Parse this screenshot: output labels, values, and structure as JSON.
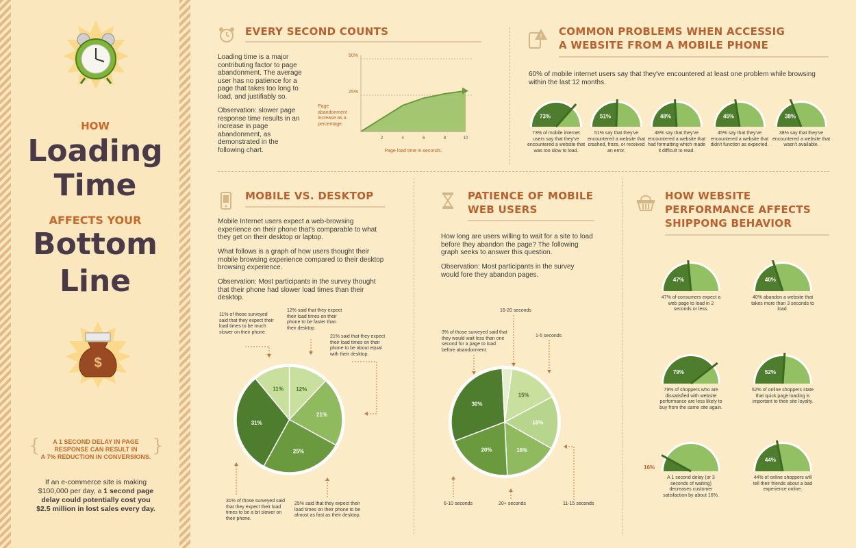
{
  "sidebar": {
    "how": "HOW",
    "loading": "Loading",
    "time": "Time",
    "affects": "AFFECTS YOUR",
    "bottom": "Bottom",
    "line": "Line",
    "delay_line1": "A 1 SECOND DELAY IN PAGE",
    "delay_line2": "RESPONSE CAN RESULT IN",
    "delay_line3": "A 7% REDUCTION IN CONVERSIONS.",
    "bottom_line1": "If an e-commerce site is making",
    "bottom_line2": "$100,000 per day, a",
    "bottom_bold2": "1 second page",
    "bottom_bold3": "delay could potentially cost you",
    "bottom_bold4": "$2.5 million in lost sales every day."
  },
  "every_second": {
    "title": "EVERY SECOND COUNTS",
    "para1": "Loading time is a major contributing factor to page abandonment. The average user has no patience for a page that takes too long to load, and justifiably so.",
    "para2": "Observation: slower page response time results in an increase in page abandonment, as demonstrated in the following chart.",
    "ylabel_a": "Page",
    "ylabel_b": "abandonment",
    "ylabel_c": "increase as a",
    "ylabel_d": "percentage.",
    "xlabel": "Page load time in seconds."
  },
  "common_problems": {
    "title_line1": "COMMON PROBLEMS WHEN ACCESSIG",
    "title_line2": "A WEBSITE FROM A MOBILE PHONE",
    "intro": "60% of mobile internet users say that they've encountered at least one problem while browsing within the last 12 months."
  },
  "mobile_desktop": {
    "title": "MOBILE VS. DESKTOP",
    "para1": "Mobile Internet users expect a web-browsing experience on their phone that's comparable to what they get on their desktop or laptop.",
    "para2": "What follows is a graph of how users thought their mobile browsing experience compared to their desktop browsing experience.",
    "para3": "Observation: Most participants in the survey thought that their phone had slower load times than their desktop.",
    "ann11": "11% of those surveyed said that they expect their load times to be much slower on their phone.",
    "ann12": "12% said that they expect their load times on their phone to be faster than their desktop.",
    "ann21": "21% said that they expect their load times on their phone to be about equal with their desktop.",
    "ann31": "31% of those surveyed said that they expect their load times to be a bit slower on their phone.",
    "ann25": "25% said that they expect their load times on their phone to be almost as fast as their desktop."
  },
  "patience": {
    "title_line1": "PATIENCE OF MOBILE",
    "title_line2": "WEB USERS",
    "para1": "How long are users willing to wait for a site to load before they abandon the page? The following graph seeks to answer this question.",
    "para2": "Observation: Most participants in the survey would fore they abandon pages.",
    "ann3": "3% of those surveyed said that they would wait less than one second for a page to load before abandonment.",
    "lbl_16_20": "16-20 seconds",
    "lbl_1_5": "1-5 seconds",
    "lbl_6_10": "6-10 seconds",
    "lbl_20": "20+ seconds",
    "lbl_11_15": "11-15 seconds"
  },
  "shopping": {
    "title_line1": "HOW WEBSITE",
    "title_line2": "PERFORMANCE AFFECTS",
    "title_line3": "SHIPPONG BEHAVIOR"
  },
  "chart_data": [
    {
      "type": "area",
      "x": [
        0,
        2,
        4,
        6,
        8,
        10
      ],
      "values": [
        0,
        9,
        18,
        23,
        26,
        28
      ],
      "xlabel": "Page load time in seconds.",
      "ylabel": "Page abandonment increase as a percentage.",
      "x_ticks": [
        "2",
        "4",
        "6",
        "8",
        "10"
      ],
      "y_ticks": [
        "25%",
        "50%"
      ],
      "ylim": [
        0,
        50
      ],
      "xlim": [
        0,
        10
      ]
    },
    {
      "type": "gauge",
      "title": "COMMON PROBLEMS WHEN ACCESSIG A WEBSITE FROM A MOBILE PHONE",
      "items": [
        {
          "value": 73,
          "label": "73%",
          "caption": "73% of mobile internet users say that they've encountered a website that was too slow to load."
        },
        {
          "value": 51,
          "label": "51%",
          "caption": "51% say that they've encountered a website that crashed, froze, or received an error."
        },
        {
          "value": 48,
          "label": "48%",
          "caption": "48% say that they've encountered a website that had formatting which made it difficult to read."
        },
        {
          "value": 45,
          "label": "45%",
          "caption": "45% say that they've encountered a website that didn't function as expected."
        },
        {
          "value": 38,
          "label": "38%",
          "caption": "38% say that they've encountered a website that wasn't available."
        }
      ]
    },
    {
      "type": "pie",
      "title": "MOBILE VS. DESKTOP",
      "slices": [
        {
          "label": "12%",
          "value": 12
        },
        {
          "label": "21%",
          "value": 21
        },
        {
          "label": "25%",
          "value": 25
        },
        {
          "label": "31%",
          "value": 31
        },
        {
          "label": "11%",
          "value": 11
        }
      ]
    },
    {
      "type": "pie",
      "title": "PATIENCE OF MOBILE WEB USERS",
      "slices": [
        {
          "label": "16%",
          "value": 16,
          "category": "1-5 seconds"
        },
        {
          "label": "16%",
          "value": 16,
          "category": "11-15 seconds"
        },
        {
          "label": "20%",
          "value": 20,
          "category": "20+ seconds"
        },
        {
          "label": "30%",
          "value": 30,
          "category": "6-10 seconds"
        },
        {
          "label": "",
          "value": 3,
          "category": "less than one second"
        },
        {
          "label": "15%",
          "value": 15,
          "category": "16-20 seconds"
        }
      ]
    },
    {
      "type": "gauge",
      "title": "HOW WEBSITE PERFORMANCE AFFECTS SHIPPONG BEHAVIOR",
      "items": [
        {
          "value": 47,
          "label": "47%",
          "caption": "47% of consumers expect a web page to load in 2 seconds or less."
        },
        {
          "value": 40,
          "label": "40%",
          "caption": "40% abandon a website that takes more than 3 seconds to load."
        },
        {
          "value": 79,
          "label": "79%",
          "caption": "79% of shoppers who are dissatisfied with website performance are less likely to buy from the same site again."
        },
        {
          "value": 52,
          "label": "52%",
          "caption": "52% of online shoppers state that quick page loading is important to their site loyalty."
        },
        {
          "value": 16,
          "label": "16%",
          "caption": "A 1 second delay (or 3 seconds of waiting) decreases customer satisfaction by about 16%."
        },
        {
          "value": 44,
          "label": "44%",
          "caption": "44% of online shoppers will tell their friends about a bad experience online."
        }
      ]
    }
  ],
  "colors": {
    "dark_green": "#4e7d2e",
    "mid_green": "#6a9a3d",
    "light_green": "#94c064",
    "pale_green": "#c8df9e",
    "accent": "#b8602f",
    "heading_dark": "#4a3a48"
  },
  "icons": [
    "alarm-clock-icon",
    "money-bag-icon",
    "clock-icon",
    "phone-warning-icon",
    "mobile-phone-icon",
    "hourglass-icon",
    "shopping-basket-icon"
  ]
}
